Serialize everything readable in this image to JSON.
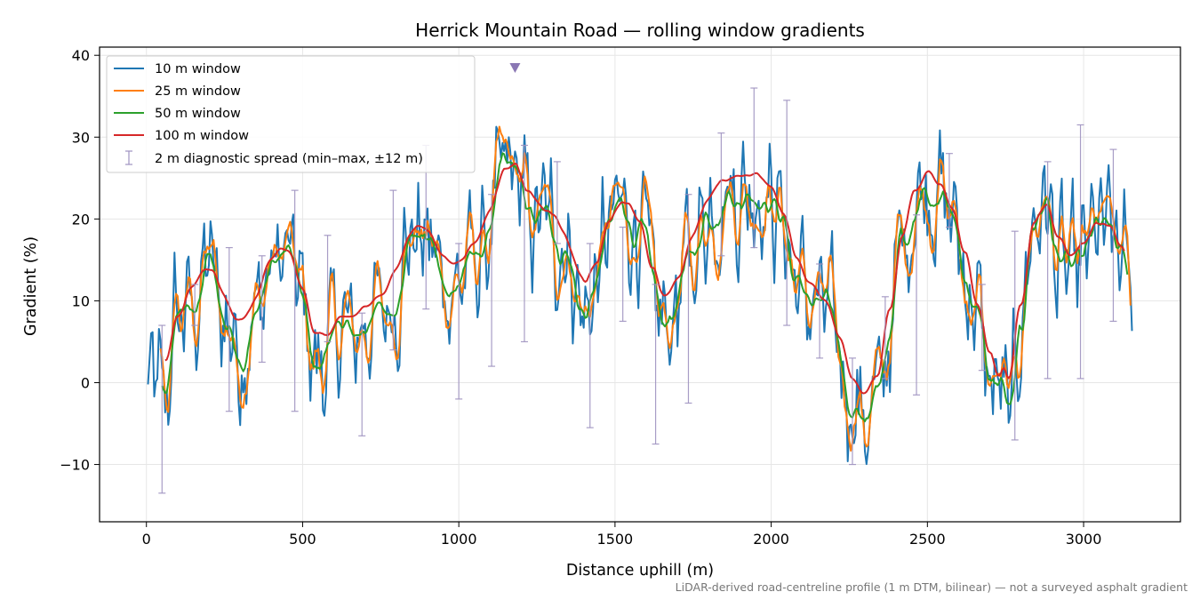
{
  "chart_data": {
    "type": "line",
    "title": "Herrick Mountain Road — rolling window gradients",
    "xlabel": "Distance uphill (m)",
    "ylabel": "Gradient (%)",
    "footnote": "LiDAR-derived road-centreline profile (1 m DTM, bilinear) — not a surveyed asphalt gradient",
    "xlim": [
      -150,
      3310
    ],
    "ylim": [
      -17,
      41
    ],
    "xticks": [
      0,
      500,
      1000,
      1500,
      2000,
      2500,
      3000
    ],
    "xtick_labels": [
      "0",
      "500",
      "1000",
      "1500",
      "2000",
      "2500",
      "3000"
    ],
    "yticks": [
      -10,
      0,
      10,
      20,
      30,
      40
    ],
    "ytick_labels": [
      "−10",
      "0",
      "10",
      "20",
      "30",
      "40"
    ],
    "grid": true,
    "legend_position": "upper-left",
    "base_profile": {
      "x": [
        0,
        30,
        60,
        100,
        150,
        200,
        250,
        300,
        350,
        400,
        450,
        500,
        540,
        580,
        620,
        660,
        700,
        750,
        800,
        850,
        900,
        950,
        1000,
        1050,
        1100,
        1150,
        1180,
        1220,
        1280,
        1340,
        1400,
        1440,
        1480,
        1530,
        1580,
        1620,
        1650,
        1700,
        1750,
        1800,
        1850,
        1900,
        1950,
        2000,
        2040,
        2080,
        2120,
        2170,
        2220,
        2260,
        2300,
        2340,
        2380,
        2420,
        2460,
        2500,
        2540,
        2580,
        2620,
        2660,
        2700,
        2740,
        2760,
        2800,
        2840,
        2880,
        2920,
        2960,
        3000,
        3040,
        3080,
        3120,
        3160
      ],
      "y": [
        -1,
        -2,
        -2,
        8,
        9,
        14,
        8,
        5,
        8,
        14,
        15,
        10,
        2,
        3,
        7,
        5,
        8,
        8,
        12,
        18,
        17,
        13,
        12,
        15,
        18,
        25,
        26,
        20,
        19,
        18,
        8,
        12,
        18,
        21,
        19,
        10,
        7,
        10,
        16,
        22,
        24,
        23,
        25,
        22,
        20,
        12,
        10,
        8,
        4,
        -2,
        -4,
        -3,
        6,
        18,
        22,
        26,
        22,
        20,
        14,
        8,
        0,
        -2,
        -6,
        8,
        20,
        22,
        14,
        12,
        14,
        18,
        17,
        15,
        10
      ]
    },
    "series": [
      {
        "name": "10 m window",
        "color": "#1f77b4",
        "x_start": 5,
        "x_end": 3155,
        "window_m": 10
      },
      {
        "name": "25 m window",
        "color": "#ff7f0e",
        "x_start": 45,
        "x_end": 3150,
        "window_m": 25
      },
      {
        "name": "50 m window",
        "color": "#2ca02c",
        "x_start": 50,
        "x_end": 3140,
        "window_m": 50
      },
      {
        "name": "100 m window",
        "color": "#d62728",
        "x_start": 60,
        "x_end": 3130,
        "window_m": 100
      }
    ],
    "error_bars": {
      "name": "2 m diagnostic spread (min–max, ±12 m)",
      "color": "#9e92c0",
      "points": [
        {
          "x": 50,
          "low": -13.5,
          "high": 7
        },
        {
          "x": 155,
          "low": 7,
          "high": 12
        },
        {
          "x": 265,
          "low": -3.5,
          "high": 16.5
        },
        {
          "x": 370,
          "low": 2.5,
          "high": 15.5
        },
        {
          "x": 475,
          "low": -3.5,
          "high": 23.5
        },
        {
          "x": 580,
          "low": 5,
          "high": 18
        },
        {
          "x": 690,
          "low": -6.5,
          "high": 8.5
        },
        {
          "x": 790,
          "low": 4,
          "high": 23.5
        },
        {
          "x": 895,
          "low": 9,
          "high": 29
        },
        {
          "x": 1000,
          "low": -2,
          "high": 17
        },
        {
          "x": 1105,
          "low": 2,
          "high": 23
        },
        {
          "x": 1210,
          "low": 5,
          "high": 29
        },
        {
          "x": 1315,
          "low": 17,
          "high": 27
        },
        {
          "x": 1420,
          "low": -5.5,
          "high": 17
        },
        {
          "x": 1525,
          "low": 7.5,
          "high": 19
        },
        {
          "x": 1630,
          "low": -7.5,
          "high": 12
        },
        {
          "x": 1735,
          "low": -2.5,
          "high": 23
        },
        {
          "x": 1840,
          "low": 15.5,
          "high": 30.5
        },
        {
          "x": 1945,
          "low": 16.5,
          "high": 36
        },
        {
          "x": 2050,
          "low": 7,
          "high": 34.5
        },
        {
          "x": 2155,
          "low": 3,
          "high": 14.5
        },
        {
          "x": 2260,
          "low": -10,
          "high": 3
        },
        {
          "x": 2365,
          "low": 0.5,
          "high": 10.5
        },
        {
          "x": 2465,
          "low": -1.5,
          "high": 20.5
        },
        {
          "x": 2570,
          "low": 19,
          "high": 28
        },
        {
          "x": 2675,
          "low": 1.5,
          "high": 12
        },
        {
          "x": 2780,
          "low": -7,
          "high": 18.5
        },
        {
          "x": 2885,
          "low": 0.5,
          "high": 27
        },
        {
          "x": 2990,
          "low": 0.5,
          "high": 31.5
        },
        {
          "x": 3095,
          "low": 7.5,
          "high": 28.5
        }
      ]
    },
    "marker": {
      "x": 1180,
      "y": 38.5,
      "shape": "triangle-down",
      "color": "#8a77b4"
    }
  }
}
